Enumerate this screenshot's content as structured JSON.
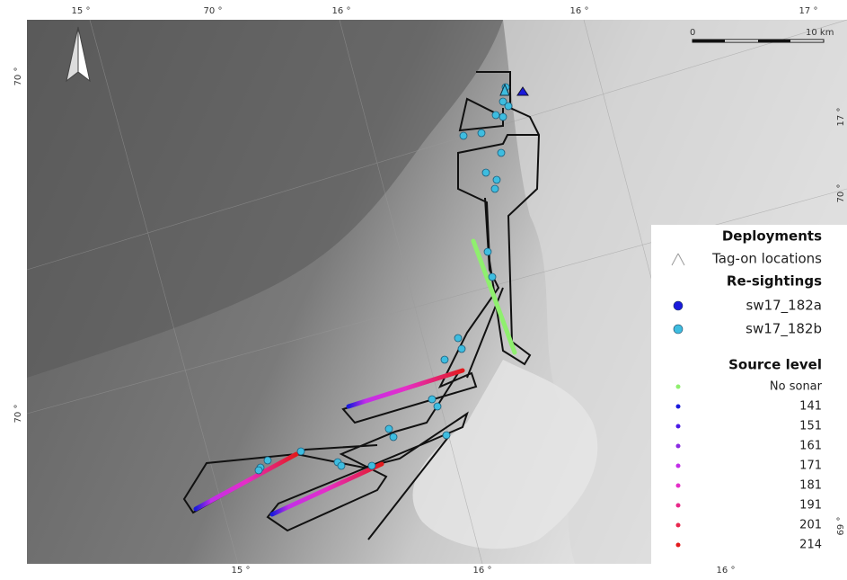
{
  "graticule": {
    "top": [
      "15 °",
      "70 °",
      "16 °",
      "16 °",
      "17 °"
    ],
    "left": [
      "70 °",
      "70 °"
    ],
    "right": [
      "17 °",
      "70 °",
      "69 °"
    ],
    "bottom": [
      "15 °",
      "16 °",
      "16 °"
    ]
  },
  "scale_bar": {
    "start": "0",
    "end": "10 km"
  },
  "legend": {
    "deployments": {
      "title": "Deployments",
      "items": [
        {
          "label": "Tag-on locations"
        }
      ]
    },
    "resightings": {
      "title": "Re-sightings",
      "items": [
        {
          "label": "sw17_182a",
          "color": "#1a1adc"
        },
        {
          "label": "sw17_182b",
          "color": "#3ebde0"
        }
      ]
    },
    "source_level": {
      "title": "Source level",
      "items": [
        {
          "label": "No sonar",
          "color": "#8fef6e"
        },
        {
          "label": "141",
          "color": "#1a1adc"
        },
        {
          "label": "151",
          "color": "#4a1ae6"
        },
        {
          "label": "161",
          "color": "#8a2be2"
        },
        {
          "label": "171",
          "color": "#c22ee8"
        },
        {
          "label": "181",
          "color": "#e52ec8"
        },
        {
          "label": "191",
          "color": "#e8288a"
        },
        {
          "label": "201",
          "color": "#e8284e"
        },
        {
          "label": "214",
          "color": "#e31a1c"
        }
      ]
    }
  }
}
